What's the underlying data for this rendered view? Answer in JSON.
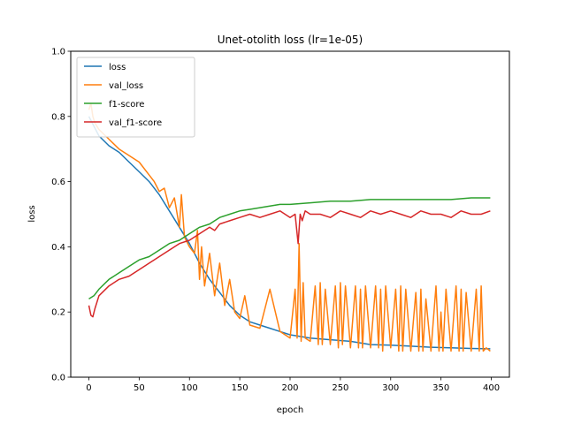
{
  "chart_data": {
    "type": "line",
    "title": "Unet-otolith loss (lr=1e-05)",
    "xlabel": "epoch",
    "ylabel": "loss",
    "xlim": [
      -18,
      418
    ],
    "ylim": [
      0.0,
      1.0
    ],
    "xticks": [
      0,
      50,
      100,
      150,
      200,
      250,
      300,
      350,
      400
    ],
    "yticks": [
      0.0,
      0.2,
      0.4,
      0.6,
      0.8,
      1.0
    ],
    "xtick_labels": [
      "0",
      "50",
      "100",
      "150",
      "200",
      "250",
      "300",
      "350",
      "400"
    ],
    "ytick_labels": [
      "0.0",
      "0.2",
      "0.4",
      "0.6",
      "0.8",
      "1.0"
    ],
    "grid": false,
    "legend_position": "top-left",
    "series": [
      {
        "name": "loss",
        "color": "#1f77b4",
        "x": [
          0,
          5,
          10,
          20,
          30,
          40,
          50,
          60,
          70,
          80,
          90,
          100,
          110,
          120,
          130,
          140,
          150,
          160,
          170,
          180,
          190,
          200,
          220,
          240,
          260,
          280,
          300,
          320,
          340,
          360,
          380,
          399
        ],
        "y": [
          0.8,
          0.77,
          0.74,
          0.71,
          0.69,
          0.66,
          0.63,
          0.6,
          0.56,
          0.51,
          0.46,
          0.41,
          0.35,
          0.3,
          0.26,
          0.22,
          0.19,
          0.17,
          0.16,
          0.15,
          0.14,
          0.13,
          0.12,
          0.115,
          0.11,
          0.1,
          0.098,
          0.095,
          0.092,
          0.09,
          0.088,
          0.087
        ]
      },
      {
        "name": "val_loss",
        "color": "#ff7f0e",
        "x": [
          0,
          2,
          4,
          6,
          10,
          20,
          30,
          40,
          50,
          60,
          65,
          70,
          75,
          80,
          85,
          90,
          92,
          95,
          100,
          105,
          108,
          110,
          112,
          115,
          120,
          125,
          130,
          135,
          140,
          145,
          150,
          155,
          160,
          170,
          180,
          190,
          200,
          205,
          207,
          209,
          211,
          213,
          215,
          220,
          225,
          228,
          230,
          232,
          235,
          240,
          245,
          248,
          250,
          252,
          255,
          260,
          265,
          268,
          270,
          272,
          275,
          280,
          285,
          288,
          290,
          292,
          295,
          300,
          305,
          308,
          310,
          312,
          315,
          320,
          325,
          328,
          330,
          332,
          335,
          340,
          345,
          348,
          350,
          352,
          355,
          360,
          365,
          368,
          370,
          372,
          375,
          380,
          385,
          388,
          390,
          392,
          395,
          399
        ],
        "y": [
          0.82,
          0.84,
          0.8,
          0.78,
          0.76,
          0.73,
          0.7,
          0.68,
          0.66,
          0.62,
          0.6,
          0.57,
          0.58,
          0.52,
          0.55,
          0.46,
          0.56,
          0.43,
          0.4,
          0.38,
          0.45,
          0.3,
          0.4,
          0.28,
          0.38,
          0.25,
          0.35,
          0.22,
          0.3,
          0.2,
          0.18,
          0.25,
          0.16,
          0.15,
          0.27,
          0.14,
          0.12,
          0.27,
          0.12,
          0.41,
          0.11,
          0.29,
          0.12,
          0.11,
          0.28,
          0.1,
          0.29,
          0.1,
          0.27,
          0.1,
          0.28,
          0.09,
          0.29,
          0.1,
          0.28,
          0.09,
          0.28,
          0.09,
          0.27,
          0.09,
          0.28,
          0.09,
          0.28,
          0.09,
          0.27,
          0.08,
          0.28,
          0.09,
          0.27,
          0.08,
          0.28,
          0.08,
          0.27,
          0.08,
          0.26,
          0.08,
          0.27,
          0.08,
          0.24,
          0.08,
          0.28,
          0.08,
          0.2,
          0.08,
          0.27,
          0.08,
          0.28,
          0.08,
          0.27,
          0.08,
          0.26,
          0.08,
          0.27,
          0.08,
          0.28,
          0.08,
          0.09,
          0.08
        ]
      },
      {
        "name": "f1-score",
        "color": "#2ca02c",
        "x": [
          0,
          5,
          10,
          20,
          30,
          40,
          50,
          60,
          70,
          80,
          90,
          100,
          110,
          120,
          130,
          140,
          150,
          160,
          170,
          180,
          190,
          200,
          220,
          240,
          260,
          280,
          300,
          320,
          340,
          360,
          380,
          399
        ],
        "y": [
          0.24,
          0.25,
          0.27,
          0.3,
          0.32,
          0.34,
          0.36,
          0.37,
          0.39,
          0.41,
          0.42,
          0.44,
          0.46,
          0.47,
          0.49,
          0.5,
          0.51,
          0.515,
          0.52,
          0.525,
          0.53,
          0.53,
          0.535,
          0.54,
          0.54,
          0.545,
          0.545,
          0.545,
          0.545,
          0.545,
          0.55,
          0.55
        ]
      },
      {
        "name": "val_f1-score",
        "color": "#d62728",
        "x": [
          0,
          2,
          4,
          6,
          10,
          20,
          30,
          40,
          50,
          60,
          70,
          80,
          90,
          100,
          110,
          120,
          125,
          130,
          140,
          150,
          160,
          170,
          180,
          190,
          200,
          205,
          208,
          210,
          212,
          215,
          220,
          230,
          240,
          250,
          260,
          270,
          280,
          290,
          300,
          310,
          320,
          330,
          340,
          350,
          360,
          370,
          380,
          390,
          399
        ],
        "y": [
          0.22,
          0.19,
          0.185,
          0.21,
          0.25,
          0.28,
          0.3,
          0.31,
          0.33,
          0.35,
          0.37,
          0.39,
          0.41,
          0.42,
          0.44,
          0.46,
          0.45,
          0.47,
          0.48,
          0.49,
          0.5,
          0.49,
          0.5,
          0.51,
          0.49,
          0.5,
          0.41,
          0.5,
          0.48,
          0.51,
          0.5,
          0.5,
          0.49,
          0.51,
          0.5,
          0.49,
          0.51,
          0.5,
          0.51,
          0.5,
          0.49,
          0.51,
          0.5,
          0.5,
          0.49,
          0.51,
          0.5,
          0.5,
          0.51
        ]
      }
    ]
  }
}
